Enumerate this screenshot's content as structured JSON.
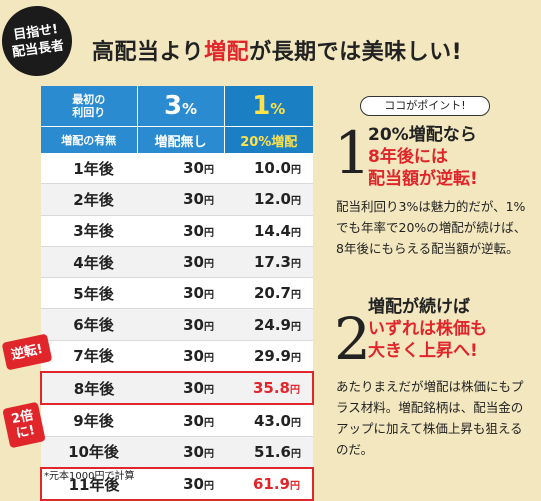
{
  "badge": {
    "line1": "目指せ!",
    "line2": "配当長者"
  },
  "title": {
    "part1": "高配当より",
    "part2": "増配",
    "part3": "が長期では美味しい!"
  },
  "table": {
    "header_first_line1": "最初の",
    "header_first_line2": "利回り",
    "col3_pct": "3",
    "col1_pct": "1",
    "pct_sign": "%",
    "header_row2_label": "増配の有無",
    "col3_label": "増配無し",
    "col1_label": "20%増配",
    "yen": "円",
    "rows": [
      {
        "year": "1年後",
        "v3": "30",
        "v1": "10.0"
      },
      {
        "year": "2年後",
        "v3": "30",
        "v1": "12.0"
      },
      {
        "year": "3年後",
        "v3": "30",
        "v1": "14.4"
      },
      {
        "year": "4年後",
        "v3": "30",
        "v1": "17.3"
      },
      {
        "year": "5年後",
        "v3": "30",
        "v1": "20.7"
      },
      {
        "year": "6年後",
        "v3": "30",
        "v1": "24.9"
      },
      {
        "year": "7年後",
        "v3": "30",
        "v1": "29.9"
      },
      {
        "year": "8年後",
        "v3": "30",
        "v1": "35.8"
      },
      {
        "year": "9年後",
        "v3": "30",
        "v1": "43.0"
      },
      {
        "year": "10年後",
        "v3": "30",
        "v1": "51.6"
      },
      {
        "year": "11年後",
        "v3": "30",
        "v1": "61.9"
      }
    ]
  },
  "tags": {
    "reverse": "逆転!",
    "double_line1": "2倍",
    "double_line2": "に!"
  },
  "footnote": "*元本1000円で計算",
  "points": {
    "label": "ココがポイント!",
    "p1": {
      "num": "1",
      "head_black": "20%増配なら",
      "head_red1": "8年後には",
      "head_red2": "配当額が逆転!",
      "body": "配当利回り3%は魅力的だが、1%でも年率で20%の増配が続けば、8年後にもらえる配当額が逆転。"
    },
    "p2": {
      "num": "2",
      "head_black": "増配が続けば",
      "head_red1": "いずれは株価も",
      "head_red2": "大きく上昇へ!",
      "body": "あたりまえだが増配は株価にもプラス材料。増配銘柄は、配当金のアップに加えて株価上昇も狙えるのだ。"
    }
  },
  "colors": {
    "accent_red": "#e0262b",
    "header_blue": "#2a8bd1",
    "header_yellow_text": "#ffe14a",
    "background": "#f2e7bf"
  }
}
